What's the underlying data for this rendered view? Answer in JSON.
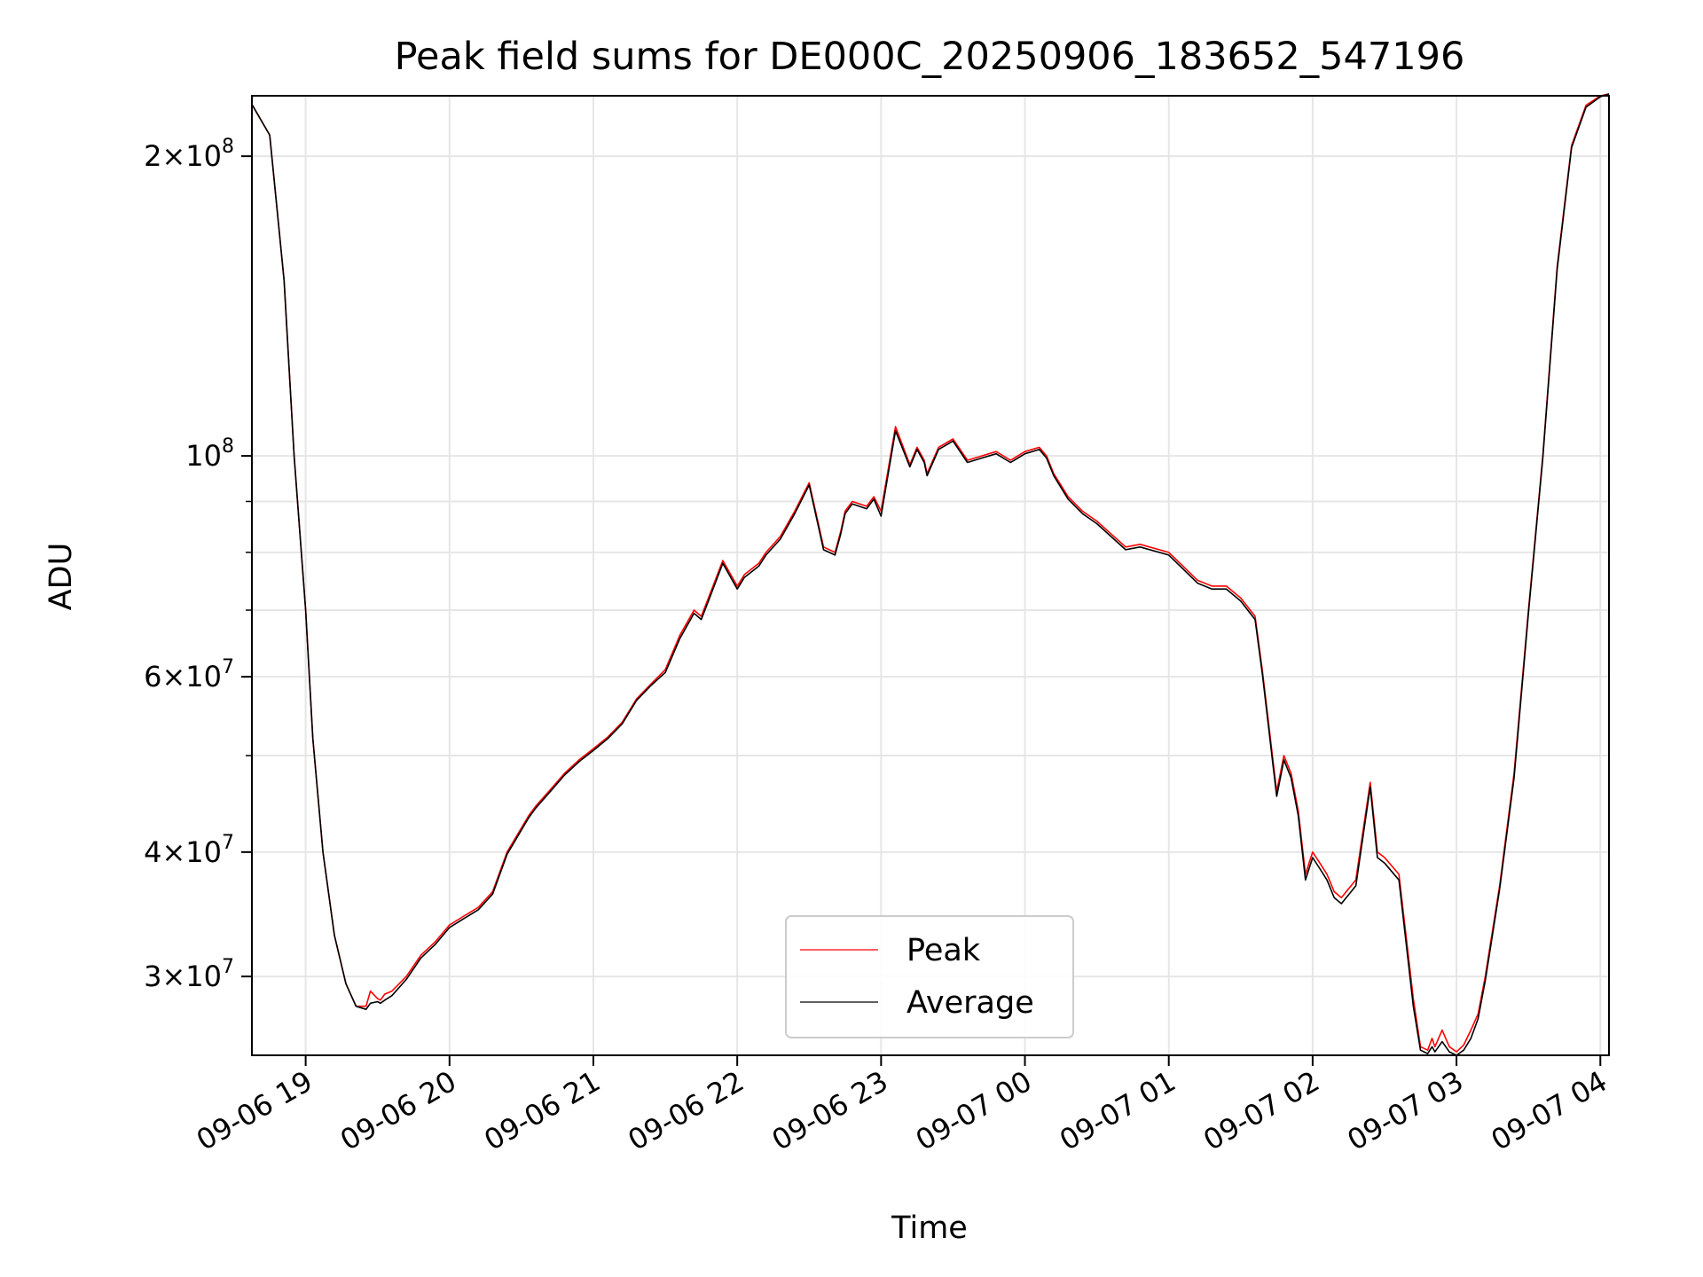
{
  "chart_data": {
    "type": "line",
    "title": "Peak field sums for DE000C_20250906_183652_547196",
    "xlabel": "Time",
    "ylabel": "ADU",
    "yscale": "log",
    "ylim": [
      25000000,
      230000000
    ],
    "xlim_hours": [
      18.6263,
      28.06
    ],
    "grid": true,
    "legend_position": "lower center",
    "x_ticks": [
      {
        "hours": 19,
        "label": "09-06 19"
      },
      {
        "hours": 20,
        "label": "09-06 20"
      },
      {
        "hours": 21,
        "label": "09-06 21"
      },
      {
        "hours": 22,
        "label": "09-06 22"
      },
      {
        "hours": 23,
        "label": "09-06 23"
      },
      {
        "hours": 24,
        "label": "09-07 00"
      },
      {
        "hours": 25,
        "label": "09-07 01"
      },
      {
        "hours": 26,
        "label": "09-07 02"
      },
      {
        "hours": 27,
        "label": "09-07 03"
      },
      {
        "hours": 28,
        "label": "09-07 04"
      }
    ],
    "y_ticks": [
      {
        "value": 30000000,
        "base": "3×10",
        "exp": "7"
      },
      {
        "value": 40000000,
        "base": "4×10",
        "exp": "7"
      },
      {
        "value": 60000000,
        "base": "6×10",
        "exp": "7"
      },
      {
        "value": 100000000,
        "base": "10",
        "exp": "8"
      },
      {
        "value": 200000000,
        "base": "2×10",
        "exp": "8"
      }
    ],
    "y_minor_ticks": [
      50000000,
      70000000,
      80000000,
      90000000
    ],
    "series": [
      {
        "name": "Peak",
        "color": "#ff0000",
        "x_hours": [
          18.63,
          18.75,
          18.85,
          18.92,
          19.0,
          19.05,
          19.12,
          19.2,
          19.28,
          19.35,
          19.42,
          19.45,
          19.5,
          19.52,
          19.55,
          19.6,
          19.7,
          19.8,
          19.9,
          20.0,
          20.1,
          20.2,
          20.3,
          20.4,
          20.55,
          20.6,
          20.7,
          20.8,
          20.9,
          21.0,
          21.1,
          21.2,
          21.3,
          21.4,
          21.5,
          21.6,
          21.7,
          21.75,
          21.8,
          21.9,
          22.0,
          22.05,
          22.15,
          22.2,
          22.3,
          22.4,
          22.5,
          22.6,
          22.68,
          22.72,
          22.75,
          22.8,
          22.9,
          22.95,
          23.0,
          23.1,
          23.2,
          23.25,
          23.3,
          23.32,
          23.4,
          23.5,
          23.6,
          23.7,
          23.8,
          23.9,
          24.0,
          24.1,
          24.15,
          24.2,
          24.3,
          24.4,
          24.5,
          24.7,
          24.8,
          25.0,
          25.2,
          25.3,
          25.4,
          25.5,
          25.6,
          25.65,
          25.7,
          25.72,
          25.75,
          25.8,
          25.85,
          25.9,
          25.95,
          26.0,
          26.05,
          26.1,
          26.15,
          26.2,
          26.3,
          26.4,
          26.45,
          26.5,
          26.6,
          26.7,
          26.75,
          26.8,
          26.83,
          26.85,
          26.9,
          26.95,
          27.0,
          27.05,
          27.1,
          27.15,
          27.2,
          27.3,
          27.4,
          27.5,
          27.6,
          27.7,
          27.8,
          27.9,
          28.0,
          28.06
        ],
        "values": [
          225000000,
          210000000,
          150000000,
          100000000,
          70000000,
          52000000,
          40000000,
          33000000,
          29500000,
          28000000,
          28000000,
          29000000,
          28500000,
          28400000,
          28800000,
          29000000,
          30000000,
          31500000,
          32500000,
          33800000,
          34500000,
          35200000,
          36500000,
          40000000,
          43500000,
          44500000,
          46200000,
          48000000,
          49500000,
          50800000,
          52200000,
          54000000,
          57000000,
          59000000,
          61000000,
          66000000,
          70000000,
          69000000,
          72000000,
          78500000,
          74000000,
          76000000,
          78000000,
          80000000,
          83000000,
          88000000,
          94000000,
          81000000,
          80000000,
          84000000,
          88000000,
          90000000,
          89000000,
          91000000,
          88000000,
          107000000,
          98000000,
          102000000,
          99000000,
          96000000,
          102000000,
          104000000,
          99000000,
          100000000,
          101000000,
          99000000,
          101000000,
          102000000,
          100000000,
          96000000,
          91000000,
          88000000,
          86000000,
          81000000,
          81500000,
          80000000,
          75000000,
          74000000,
          74000000,
          72000000,
          69000000,
          61000000,
          53000000,
          50000000,
          46000000,
          50000000,
          48000000,
          44000000,
          38000000,
          40000000,
          39000000,
          38000000,
          36500000,
          36000000,
          37500000,
          47000000,
          40000000,
          39500000,
          38000000,
          28500000,
          25500000,
          25300000,
          26000000,
          25500000,
          26500000,
          25500000,
          25200000,
          25600000,
          26500000,
          27500000,
          30000000,
          37000000,
          48000000,
          70000000,
          100000000,
          155000000,
          205000000,
          225000000,
          230000000,
          231000000
        ],
        "legend_label": "Peak"
      },
      {
        "name": "Average",
        "color": "#000000",
        "x_hours": [
          18.63,
          18.75,
          18.85,
          18.92,
          19.0,
          19.05,
          19.12,
          19.2,
          19.28,
          19.35,
          19.42,
          19.45,
          19.5,
          19.52,
          19.55,
          19.6,
          19.7,
          19.8,
          19.9,
          20.0,
          20.1,
          20.2,
          20.3,
          20.4,
          20.55,
          20.6,
          20.7,
          20.8,
          20.9,
          21.0,
          21.1,
          21.2,
          21.3,
          21.4,
          21.5,
          21.6,
          21.7,
          21.75,
          21.8,
          21.9,
          22.0,
          22.05,
          22.15,
          22.2,
          22.3,
          22.4,
          22.5,
          22.6,
          22.68,
          22.72,
          22.75,
          22.8,
          22.9,
          22.95,
          23.0,
          23.1,
          23.2,
          23.25,
          23.3,
          23.32,
          23.4,
          23.5,
          23.6,
          23.7,
          23.8,
          23.9,
          24.0,
          24.1,
          24.15,
          24.2,
          24.3,
          24.4,
          24.5,
          24.7,
          24.8,
          25.0,
          25.2,
          25.3,
          25.4,
          25.5,
          25.6,
          25.65,
          25.7,
          25.72,
          25.75,
          25.8,
          25.85,
          25.9,
          25.95,
          26.0,
          26.05,
          26.1,
          26.15,
          26.2,
          26.3,
          26.4,
          26.45,
          26.5,
          26.6,
          26.7,
          26.75,
          26.8,
          26.83,
          26.85,
          26.9,
          26.95,
          27.0,
          27.05,
          27.1,
          27.15,
          27.2,
          27.3,
          27.4,
          27.5,
          27.6,
          27.7,
          27.8,
          27.9,
          28.0,
          28.06
        ],
        "values": [
          225000000,
          210000000,
          150000000,
          100000000,
          70000000,
          52000000,
          40000000,
          33000000,
          29500000,
          28000000,
          27800000,
          28200000,
          28300000,
          28200000,
          28400000,
          28700000,
          29800000,
          31300000,
          32300000,
          33600000,
          34300000,
          35000000,
          36300000,
          39800000,
          43300000,
          44300000,
          46000000,
          47800000,
          49300000,
          50600000,
          52000000,
          53800000,
          56800000,
          58800000,
          60600000,
          65500000,
          69500000,
          68500000,
          71500000,
          78000000,
          73500000,
          75500000,
          77500000,
          79500000,
          82500000,
          87500000,
          93500000,
          80500000,
          79500000,
          83500000,
          87500000,
          89500000,
          88500000,
          90500000,
          87000000,
          106000000,
          97500000,
          101500000,
          98500000,
          95500000,
          101500000,
          103500000,
          98500000,
          99500000,
          100500000,
          98500000,
          100500000,
          101500000,
          99500000,
          95500000,
          90500000,
          87500000,
          85500000,
          80500000,
          81000000,
          79500000,
          74500000,
          73500000,
          73500000,
          71500000,
          68500000,
          60500000,
          52500000,
          49500000,
          45500000,
          49500000,
          47500000,
          43500000,
          37500000,
          39500000,
          38500000,
          37500000,
          36000000,
          35500000,
          37000000,
          46500000,
          39500000,
          39000000,
          37500000,
          28000000,
          25300000,
          25100000,
          25500000,
          25200000,
          25800000,
          25200000,
          25000000,
          25300000,
          26000000,
          27200000,
          29700000,
          36700000,
          47500000,
          69500000,
          99500000,
          154000000,
          204000000,
          224000000,
          229500000,
          231000000
        ],
        "legend_label": "Average"
      }
    ]
  }
}
